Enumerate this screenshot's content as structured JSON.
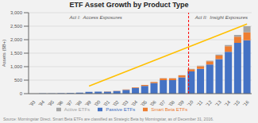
{
  "chart_data": {
    "type": "bar",
    "stacked": true,
    "title": "ETF Asset Growth by Product Type",
    "y_label": "Assets ($B+)",
    "categories": [
      "'93",
      "'94",
      "'95",
      "'96",
      "'97",
      "'98",
      "'99",
      "'00",
      "'01",
      "'02",
      "'03",
      "'04",
      "'05",
      "'06",
      "'07",
      "'08",
      "'09",
      "'10",
      "'11",
      "'12",
      "'13",
      "'14",
      "'15",
      "'16"
    ],
    "series": [
      {
        "name": "Passive ETFs",
        "color": "#4472C4",
        "values": [
          2,
          5,
          10,
          16,
          24,
          38,
          65,
          70,
          75,
          95,
          140,
          210,
          290,
          390,
          500,
          500,
          600,
          820,
          920,
          1080,
          1280,
          1550,
          1880,
          1980
        ]
      },
      {
        "name": "Smart Beta ETFs",
        "color": "#ED7D31",
        "values": [
          0,
          0,
          0,
          0,
          0,
          0,
          0,
          6,
          8,
          10,
          15,
          22,
          32,
          42,
          65,
          65,
          75,
          85,
          95,
          115,
          135,
          210,
          230,
          290
        ]
      },
      {
        "name": "Active ETFs",
        "color": "#A5A5A5",
        "values": [
          0,
          0,
          0,
          0,
          0,
          0,
          0,
          0,
          0,
          0,
          0,
          0,
          0,
          6,
          8,
          10,
          10,
          15,
          20,
          25,
          30,
          40,
          65,
          230
        ]
      }
    ],
    "ylim": [
      0,
      3000
    ],
    "yticks": [
      0,
      500,
      {
        "value": 1000,
        "label": "1,000"
      },
      {
        "value": 1500,
        "label": "1,500"
      },
      {
        "value": 2000,
        "label": "2,000"
      },
      {
        "value": 2500,
        "label": "2,500"
      },
      {
        "value": 3000,
        "label": "3,000"
      }
    ],
    "grid": true,
    "legend": "bottom",
    "trend_line": {
      "x": [
        "'99",
        "'16"
      ],
      "values": [
        280,
        2580
      ],
      "color": "#FFC000"
    },
    "divider": {
      "x": 16.5,
      "color": "#FF0000",
      "line_style": "dashed"
    },
    "annotations": [
      "Act I:  Access Exposures",
      "Act II:  Insight Exposures"
    ],
    "annotation_color": "#595959",
    "source": "Source: Morningstar Direct. Smart Beta ETFs are classified as Strategic Beta by Morningstar, as of December 31, 2016.",
    "background_color": "#F2F2F2"
  }
}
